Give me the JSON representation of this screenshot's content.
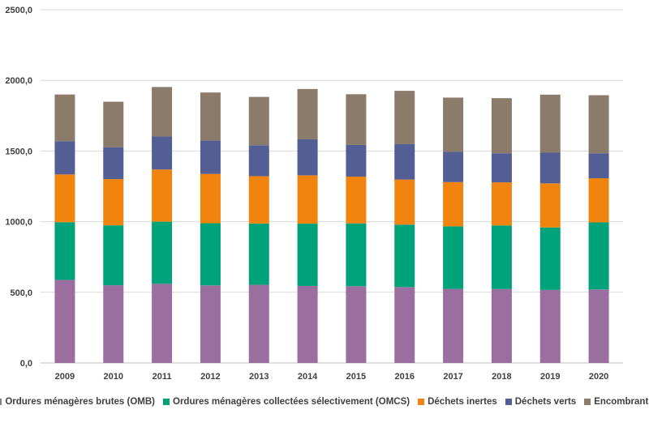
{
  "chart_data": {
    "type": "bar",
    "stacked": true,
    "categories": [
      "2009",
      "2010",
      "2011",
      "2012",
      "2013",
      "2014",
      "2015",
      "2016",
      "2017",
      "2018",
      "2019",
      "2020"
    ],
    "series": [
      {
        "name": "Ordures ménagères brutes (OMB)",
        "color": "#9a6fa0",
        "values": [
          588,
          550,
          560,
          549,
          553,
          545,
          543,
          537,
          524,
          523,
          517,
          520
        ]
      },
      {
        "name": "Ordures ménagères collectées sélectivement (OMCS)",
        "color": "#00a27a",
        "values": [
          408,
          424,
          440,
          440,
          434,
          441,
          445,
          442,
          443,
          450,
          442,
          475
        ]
      },
      {
        "name": "Déchets inertes",
        "color": "#f0840f",
        "values": [
          338,
          327,
          369,
          349,
          335,
          342,
          331,
          319,
          313,
          305,
          312,
          312
        ]
      },
      {
        "name": "Déchets verts",
        "color": "#535e95",
        "values": [
          236,
          225,
          234,
          237,
          219,
          255,
          224,
          250,
          214,
          206,
          217,
          177
        ]
      },
      {
        "name": "Encombrants",
        "color": "#8a7b6a",
        "values": [
          330,
          323,
          350,
          339,
          342,
          356,
          359,
          378,
          384,
          390,
          411,
          411
        ]
      }
    ],
    "y_ticks": [
      "0,0",
      "500,0",
      "1000,0",
      "1500,0",
      "2000,0",
      "2500,0"
    ],
    "ylim": [
      0,
      2500
    ],
    "grid": true,
    "legend_position": "bottom",
    "title": "",
    "xlabel": "",
    "ylabel": ""
  }
}
